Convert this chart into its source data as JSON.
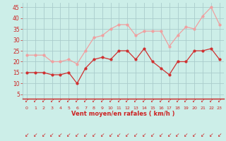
{
  "x": [
    0,
    1,
    2,
    3,
    4,
    5,
    6,
    7,
    8,
    9,
    10,
    11,
    12,
    13,
    14,
    15,
    16,
    17,
    18,
    19,
    20,
    21,
    22,
    23
  ],
  "wind_avg": [
    15,
    15,
    15,
    14,
    14,
    15,
    10,
    17,
    21,
    22,
    21,
    25,
    25,
    21,
    26,
    20,
    17,
    14,
    20,
    20,
    25,
    25,
    26,
    21
  ],
  "wind_gust": [
    23,
    23,
    23,
    20,
    20,
    21,
    19,
    25,
    31,
    32,
    35,
    37,
    37,
    32,
    34,
    34,
    34,
    27,
    32,
    36,
    35,
    41,
    45,
    37
  ],
  "avg_color": "#d03030",
  "gust_color": "#f0a0a0",
  "bg_color": "#cceee8",
  "grid_color": "#aacccc",
  "axis_color": "#cc2222",
  "xlabel": "Vent moyen/en rafales ( km/h )",
  "ylabel_ticks": [
    5,
    10,
    15,
    20,
    25,
    30,
    35,
    40,
    45
  ],
  "xlim": [
    -0.5,
    23.5
  ],
  "ylim": [
    3,
    47
  ]
}
